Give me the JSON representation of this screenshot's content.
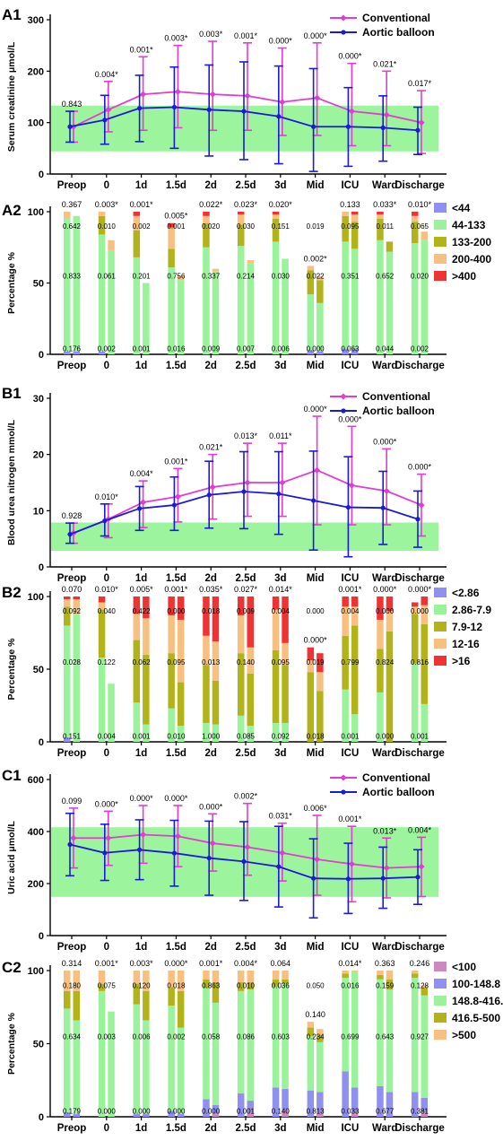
{
  "figure": {
    "categories": [
      "Preop",
      "0",
      "1d",
      "1.5d",
      "2d",
      "2.5d",
      "3d",
      "Mid",
      "ICU",
      "Ward",
      "Discharge"
    ],
    "line_legend": [
      {
        "name": "Conventional",
        "color": "#E23CD3"
      },
      {
        "name": "Aortic balloon",
        "color": "#1A1ADB"
      }
    ],
    "band_color": "#9CF59C"
  },
  "chart_data": [
    {
      "panel_label": "A1",
      "type": "line",
      "ylabel": "Serum creatinine μmol/L",
      "ylim": [
        0,
        300
      ],
      "yticks": [
        0,
        100,
        200,
        300
      ],
      "normal_band": [
        44,
        133
      ],
      "series": [
        {
          "name": "Conventional",
          "values": [
            92,
            125,
            155,
            160,
            155,
            152,
            140,
            148,
            122,
            115,
            100
          ],
          "err_low": [
            62,
            82,
            85,
            90,
            85,
            85,
            75,
            75,
            55,
            55,
            40
          ],
          "err_high": [
            122,
            180,
            228,
            250,
            258,
            255,
            245,
            255,
            215,
            200,
            162
          ]
        },
        {
          "name": "Aortic balloon",
          "values": [
            92,
            105,
            128,
            130,
            125,
            122,
            112,
            92,
            92,
            90,
            85
          ],
          "err_low": [
            62,
            58,
            63,
            50,
            35,
            28,
            20,
            5,
            15,
            25,
            38
          ],
          "err_high": [
            122,
            153,
            192,
            208,
            212,
            218,
            210,
            205,
            168,
            152,
            130
          ]
        }
      ],
      "p_values": [
        "0.843",
        "0.004*",
        "0.001*",
        "0.003*",
        "0.003*",
        "0.001*",
        "0.000*",
        "0.000*",
        "0.000*",
        "0.021*",
        "0.017*"
      ]
    },
    {
      "panel_label": "A2",
      "type": "bar",
      "stacked": true,
      "ylabel": "Percentage %",
      "ylim": [
        0,
        100
      ],
      "yticks": [
        0,
        50,
        100
      ],
      "legend": [
        {
          "name": "<44",
          "color": "#9090F0"
        },
        {
          "name": "44-133",
          "color": "#9AF29A"
        },
        {
          "name": "133-200",
          "color": "#B2B21A"
        },
        {
          "name": "200-400",
          "color": "#F8C080"
        },
        {
          "name": ">400",
          "color": "#EE3333"
        }
      ],
      "bars": [
        [
          [
            2,
            93,
            0,
            5,
            0
          ],
          [
            2,
            95,
            0,
            0,
            0
          ]
        ],
        [
          [
            2,
            82,
            13,
            3,
            0
          ],
          [
            0,
            73,
            0,
            7,
            0
          ]
        ],
        [
          [
            0,
            68,
            19,
            10,
            3
          ],
          [
            0,
            50,
            0,
            0,
            0
          ]
        ],
        [
          [
            0,
            61,
            13,
            15,
            3
          ],
          [
            0,
            52,
            0,
            3,
            0
          ]
        ],
        [
          [
            0,
            75,
            17,
            5,
            3
          ],
          [
            0,
            58,
            0,
            2,
            0
          ]
        ],
        [
          [
            0,
            76,
            15,
            7,
            2
          ],
          [
            0,
            64,
            0,
            2,
            0
          ]
        ],
        [
          [
            0,
            79,
            16,
            3,
            2
          ],
          [
            0,
            67,
            0,
            0,
            0
          ]
        ],
        [
          [
            3,
            39,
            17,
            3,
            0
          ],
          [
            2,
            34,
            16,
            3,
            0
          ]
        ],
        [
          [
            4,
            75,
            18,
            3,
            0
          ],
          [
            4,
            70,
            19,
            5,
            2
          ]
        ],
        [
          [
            0,
            80,
            15,
            3,
            2
          ],
          [
            0,
            72,
            7,
            0,
            0
          ]
        ],
        [
          [
            0,
            78,
            15,
            4,
            3
          ],
          [
            0,
            80,
            0,
            6,
            0
          ]
        ]
      ],
      "p_values": [
        "0.367",
        "0.003*",
        "0.001*",
        "0.005*",
        "0.022*",
        "0.023*",
        "0.020*",
        "0.002*",
        "0.133",
        "0.033*",
        "0.010*"
      ],
      "annotations": [
        [
          "0.642",
          "0.833",
          "0.176"
        ],
        [
          "0.010",
          "0.061",
          "0.002"
        ],
        [
          "0.002",
          "0.201",
          "0.001"
        ],
        [
          "0.001",
          "0.756",
          "0.016"
        ],
        [
          "0.020",
          "0.337",
          "0.009"
        ],
        [
          "0.030",
          "0.214",
          "0.007"
        ],
        [
          "0.151",
          "0.030",
          "0.006"
        ],
        [
          "0.019",
          "0.022",
          "0.000"
        ],
        [
          "0.095",
          "0.351",
          "0.063"
        ],
        [
          "0.011",
          "0.652",
          "0.044"
        ],
        [
          "0.065",
          "0.020",
          "0.002"
        ]
      ]
    },
    {
      "panel_label": "B1",
      "type": "line",
      "ylabel": "Blood urea nitrogen mmol/L",
      "ylim": [
        0,
        30
      ],
      "yticks": [
        0,
        10,
        20,
        30
      ],
      "normal_band": [
        2.86,
        7.9
      ],
      "series": [
        {
          "name": "Conventional",
          "values": [
            6,
            8.5,
            11.5,
            12.5,
            14.2,
            15,
            15,
            17.2,
            14.5,
            13.5,
            11
          ],
          "err_low": [
            4.2,
            5.2,
            7,
            8,
            8.5,
            9,
            9,
            7.5,
            7.5,
            7.5,
            5.5
          ],
          "err_high": [
            7.8,
            11.2,
            15.3,
            17.5,
            20,
            22,
            22,
            26.8,
            25,
            21,
            16.5
          ]
        },
        {
          "name": "Aortic balloon",
          "values": [
            5.8,
            8.2,
            10.4,
            11,
            12.8,
            13.4,
            13,
            11.8,
            10.6,
            10.5,
            8.5
          ],
          "err_low": [
            4.2,
            5.5,
            6.5,
            6.5,
            6.9,
            6.8,
            5.8,
            3,
            1.8,
            4,
            3.5
          ],
          "err_high": [
            7.8,
            11.2,
            14.3,
            16,
            18.8,
            20.5,
            20.5,
            20.6,
            19.6,
            17,
            13.5
          ]
        }
      ],
      "p_values": [
        "0.928",
        "0.010*",
        "0.004*",
        "0.001*",
        "0.021*",
        "0.013*",
        "0.011*",
        "0.000*",
        "0.000*",
        "0.000*",
        "0.000*"
      ]
    },
    {
      "panel_label": "B2",
      "type": "bar",
      "stacked": true,
      "ylabel": "Percentage %",
      "ylim": [
        0,
        100
      ],
      "yticks": [
        0,
        50,
        100
      ],
      "legend": [
        {
          "name": "<2.86",
          "color": "#9090F0"
        },
        {
          "name": "2.86-7.9",
          "color": "#9AF29A"
        },
        {
          "name": "7.9-12",
          "color": "#B2B21A"
        },
        {
          "name": "12-16",
          "color": "#F8C080"
        },
        {
          "name": ">16",
          "color": "#EE3333"
        }
      ],
      "bars": [
        [
          [
            3,
            77,
            13,
            5,
            2
          ],
          [
            0,
            88,
            0,
            10,
            2
          ]
        ],
        [
          [
            0,
            58,
            33,
            5,
            4
          ],
          [
            0,
            40,
            0,
            0,
            0
          ]
        ],
        [
          [
            0,
            27,
            43,
            18,
            12
          ],
          [
            0,
            12,
            48,
            25,
            15
          ]
        ],
        [
          [
            0,
            23,
            38,
            26,
            13
          ],
          [
            0,
            11,
            30,
            43,
            16
          ]
        ],
        [
          [
            0,
            13,
            40,
            20,
            27
          ],
          [
            0,
            12,
            30,
            27,
            31
          ]
        ],
        [
          [
            0,
            18,
            43,
            26,
            13
          ],
          [
            0,
            11,
            36,
            18,
            35
          ]
        ],
        [
          [
            0,
            13,
            50,
            28,
            9
          ],
          [
            0,
            13,
            40,
            15,
            32
          ]
        ],
        [
          [
            0,
            0,
            48,
            8,
            9
          ],
          [
            0,
            0,
            35,
            13,
            13
          ]
        ],
        [
          [
            0,
            36,
            37,
            20,
            7
          ],
          [
            0,
            19,
            61,
            13,
            7
          ]
        ],
        [
          [
            0,
            34,
            30,
            20,
            16
          ],
          [
            0,
            0,
            76,
            14,
            10
          ]
        ],
        [
          [
            0,
            54,
            34,
            5,
            3
          ],
          [
            0,
            26,
            55,
            13,
            6
          ]
        ]
      ],
      "p_values": [
        "0.070",
        "0.010*",
        "0.005*",
        "0.001*",
        "0.035*",
        "0.027*",
        "0.014*",
        "0.000*",
        "0.001*",
        "0.000*",
        "0.000*"
      ],
      "annotations": [
        [
          "0.092",
          "0.028",
          "0.151"
        ],
        [
          "0.040",
          "0.122",
          "0.004"
        ],
        [
          "0.422",
          "0.062",
          "0.001"
        ],
        [
          "0.000",
          "0.095",
          "0.010"
        ],
        [
          "0.018",
          "0.013",
          "1.000"
        ],
        [
          "0.009",
          "0.140",
          "0.085"
        ],
        [
          "0.004",
          "0.095",
          "0.092"
        ],
        [
          "0.000",
          "0.019",
          "0.018"
        ],
        [
          "0.004",
          "0.799",
          "0.001"
        ],
        [
          "0.000",
          "0.824",
          "0.000"
        ],
        [
          "0.000",
          "0.816",
          "0.001"
        ]
      ]
    },
    {
      "panel_label": "C1",
      "type": "line",
      "ylabel": "Uric acid μmol/L",
      "ylim": [
        0,
        600
      ],
      "yticks": [
        0,
        200,
        400,
        600
      ],
      "normal_band": [
        148.8,
        416.5
      ],
      "series": [
        {
          "name": "Conventional",
          "values": [
            375,
            375,
            388,
            382,
            355,
            340,
            318,
            293,
            275,
            260,
            265
          ],
          "err_low": [
            260,
            270,
            278,
            265,
            248,
            232,
            210,
            155,
            130,
            145,
            150
          ],
          "err_high": [
            490,
            478,
            500,
            500,
            468,
            508,
            432,
            462,
            420,
            375,
            378
          ]
        },
        {
          "name": "Aortic balloon",
          "values": [
            350,
            318,
            330,
            317,
            298,
            285,
            265,
            220,
            218,
            220,
            225
          ],
          "err_low": [
            230,
            212,
            215,
            190,
            155,
            135,
            110,
            68,
            85,
            105,
            120
          ],
          "err_high": [
            470,
            428,
            445,
            443,
            440,
            438,
            420,
            372,
            355,
            340,
            330
          ]
        }
      ],
      "p_values": [
        "0.099",
        "0.000*",
        "0.000*",
        "0.000*",
        "0.000*",
        "0.002*",
        "0.031*",
        "0.006*",
        "0.001*",
        "0.013*",
        "0.004*"
      ]
    },
    {
      "panel_label": "C2",
      "type": "bar",
      "stacked": true,
      "ylabel": "Percentage %",
      "ylim": [
        0,
        100
      ],
      "yticks": [
        0,
        50,
        100
      ],
      "legend": [
        {
          "name": "<100",
          "color": "#C98BC0"
        },
        {
          "name": "100-148.8",
          "color": "#9090F0"
        },
        {
          "name": "148.8-416.5",
          "color": "#9AF29A"
        },
        {
          "name": "416.5-500",
          "color": "#B2B21A"
        },
        {
          "name": ">500",
          "color": "#F8C080"
        }
      ],
      "bars": [
        [
          [
            0,
            3,
            71,
            12,
            14
          ],
          [
            0,
            2,
            64,
            20,
            14
          ]
        ],
        [
          [
            0,
            0,
            86,
            5,
            9
          ],
          [
            0,
            0,
            72,
            0,
            0
          ]
        ],
        [
          [
            0,
            2,
            75,
            14,
            9
          ],
          [
            0,
            2,
            64,
            20,
            14
          ]
        ],
        [
          [
            0,
            4,
            72,
            12,
            12
          ],
          [
            0,
            2,
            59,
            25,
            14
          ]
        ],
        [
          [
            0,
            12,
            76,
            6,
            6
          ],
          [
            2,
            6,
            70,
            14,
            8
          ]
        ],
        [
          [
            0,
            16,
            70,
            6,
            8
          ],
          [
            3,
            8,
            76,
            5,
            8
          ]
        ],
        [
          [
            0,
            20,
            69,
            5,
            6
          ],
          [
            5,
            14,
            72,
            3,
            6
          ]
        ],
        [
          [
            0,
            18,
            37,
            6,
            4
          ],
          [
            3,
            14,
            34,
            5,
            4
          ]
        ],
        [
          [
            0,
            31,
            64,
            3,
            2
          ],
          [
            3,
            17,
            79,
            0,
            1
          ]
        ],
        [
          [
            0,
            21,
            73,
            3,
            3
          ],
          [
            0,
            17,
            70,
            7,
            6
          ]
        ],
        [
          [
            0,
            17,
            78,
            3,
            2
          ],
          [
            3,
            10,
            70,
            5,
            2
          ]
        ]
      ],
      "p_values": [
        "0.314",
        "0.001*",
        "0.003*",
        "0.000*",
        "0.001*",
        "0.004*",
        "0.064",
        "0.140",
        "0.014*",
        "0.363",
        "0.246"
      ],
      "annotations": [
        [
          "0.180",
          "0.634",
          "0.179"
        ],
        [
          "0.075",
          "0.003",
          "0.000"
        ],
        [
          "0.120",
          "0.006",
          "0.000"
        ],
        [
          "0.018",
          "0.002",
          "0.000"
        ],
        [
          "0.863",
          "0.058",
          "0.000"
        ],
        [
          "0.010",
          "0.086",
          "0.001"
        ],
        [
          "0.036",
          "0.603",
          "0.140"
        ],
        [
          "0.050",
          "0.234",
          "0.813"
        ],
        [
          "0.016",
          "0.699",
          "0.033"
        ],
        [
          "0.159",
          "0.643",
          "0.677"
        ],
        [
          "0.128",
          "0.927",
          "0.381"
        ]
      ]
    }
  ]
}
